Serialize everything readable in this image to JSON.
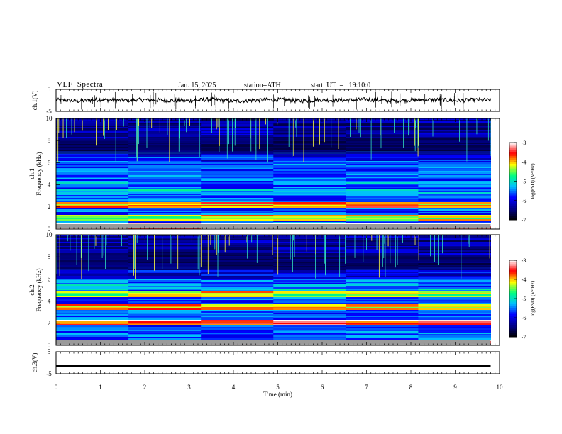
{
  "header": {
    "title": "VLF  Spectra",
    "date": "Jan. 15, 2025",
    "station": "station=ATH",
    "start": "start  UT  =   19:10:0"
  },
  "colors": {
    "frame": "#000000",
    "colormap": [
      "#000000",
      "#00008b",
      "#0000ff",
      "#00bfff",
      "#00ff7f",
      "#ffff00",
      "#ff0000",
      "#ffffff"
    ]
  },
  "chart_data": [
    {
      "type": "line",
      "panel": "ch1-waveform",
      "ylabel": "ch.1(V)",
      "ylim": [
        -5,
        5
      ],
      "yticks": [
        "5",
        "-5"
      ],
      "x": [
        0,
        0.5,
        1,
        1.5,
        2,
        2.5,
        3,
        3.5,
        4,
        4.5,
        5,
        5.5,
        6,
        6.5,
        7,
        7.5,
        8,
        8.5,
        9,
        9.5,
        9.8
      ],
      "y": [
        0.2,
        -0.3,
        0.4,
        -0.1,
        0.3,
        0.0,
        -0.2,
        0.5,
        -0.4,
        0.1,
        0.3,
        -0.3,
        0.2,
        0.0,
        0.4,
        -0.2,
        0.1,
        0.3,
        -0.1,
        0.2,
        0.0
      ]
    },
    {
      "type": "heatmap",
      "panel": "ch1-spectrogram",
      "ylabel_line1": "ch.1",
      "ylabel_line2": "Frequency (kHz)",
      "ylim": [
        0,
        10
      ],
      "yticks": [
        "0",
        "2",
        "4",
        "6",
        "8",
        "10"
      ],
      "colorbar": {
        "label": "log(PSD) (V²/Hz)",
        "range": [
          -7,
          -3
        ],
        "ticks": [
          "-3",
          "-4",
          "-5",
          "-6",
          "-7"
        ]
      },
      "bands": [
        {
          "freq_khz": 0.2,
          "level": -3.3
        },
        {
          "freq_khz": 1.0,
          "level": -4.5
        },
        {
          "freq_khz": 2.2,
          "level": -4.2
        },
        {
          "freq_khz": 3.4,
          "level": -5.4
        },
        {
          "freq_khz": 4.4,
          "level": -5.8
        },
        {
          "freq_khz": 5.2,
          "level": -6.0
        },
        {
          "freq_khz": 6.3,
          "level": -6.1
        }
      ]
    },
    {
      "type": "heatmap",
      "panel": "ch2-spectrogram",
      "ylabel_line1": "ch.2",
      "ylabel_line2": "Frequency (kHz)",
      "ylim": [
        0,
        10
      ],
      "yticks": [
        "0",
        "2",
        "4",
        "6",
        "8",
        "10"
      ],
      "colorbar": {
        "label": "log(PSD) (V²/Hz)",
        "range": [
          -7,
          -3
        ],
        "ticks": [
          "-3",
          "-4",
          "-5",
          "-6",
          "-7"
        ]
      },
      "bands": [
        {
          "freq_khz": 0.3,
          "level": -3.5
        },
        {
          "freq_khz": 2.0,
          "level": -3.8
        },
        {
          "freq_khz": 3.5,
          "level": -4.3
        },
        {
          "freq_khz": 4.6,
          "level": -4.5
        },
        {
          "freq_khz": 5.3,
          "level": -5.6
        }
      ]
    },
    {
      "type": "line",
      "panel": "ch3-waveform",
      "ylabel": "ch.3(V)",
      "ylim": [
        -5,
        5
      ],
      "yticks": [
        "5",
        "-5"
      ],
      "x": [
        0,
        9.8
      ],
      "y": [
        -1.5,
        -1.5
      ]
    }
  ],
  "xaxis": {
    "label": "Time (min)",
    "xlim": [
      0,
      10
    ],
    "ticks": [
      "0",
      "1",
      "2",
      "3",
      "4",
      "5",
      "6",
      "7",
      "8",
      "9",
      "10"
    ]
  }
}
